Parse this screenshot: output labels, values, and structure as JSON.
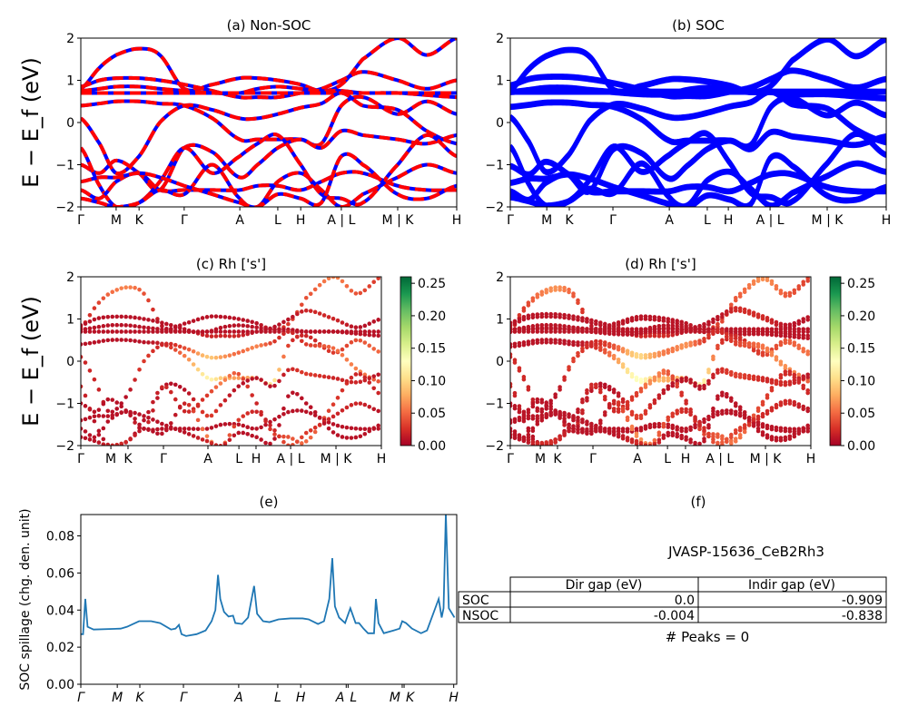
{
  "chart_data": [
    {
      "id": "a",
      "type": "line",
      "title": "(a) Non-SOC",
      "ylabel": "E − E_f (eV)",
      "ylim": [
        -2,
        2
      ],
      "yticks": [
        "−2",
        "−1",
        "0",
        "1",
        "2"
      ],
      "xticks": [
        {
          "k": 0,
          "label": "Γ"
        },
        {
          "k": 0.094,
          "label": "M"
        },
        {
          "k": 0.155,
          "label": "K"
        },
        {
          "k": 0.275,
          "label": "Γ"
        },
        {
          "k": 0.423,
          "label": "A"
        },
        {
          "k": 0.524,
          "label": "L"
        },
        {
          "k": 0.585,
          "label": "H"
        },
        {
          "k": 0.693,
          "label": "A | L"
        },
        {
          "k": 0.843,
          "label": "M | K"
        },
        {
          "k": 1,
          "label": "H"
        }
      ],
      "colors": [
        "#ff0000",
        "#0000ff"
      ]
    },
    {
      "id": "b",
      "type": "line",
      "title": "(b) SOC",
      "ylim": [
        -2,
        2
      ],
      "yticks": [
        "−2",
        "−1",
        "0",
        "1",
        "2"
      ],
      "xticks": [
        {
          "k": 0,
          "label": "Γ"
        },
        {
          "k": 0.097,
          "label": "M"
        },
        {
          "k": 0.157,
          "label": "K"
        },
        {
          "k": 0.273,
          "label": "Γ"
        },
        {
          "k": 0.423,
          "label": "A"
        },
        {
          "k": 0.524,
          "label": "L"
        },
        {
          "k": 0.58,
          "label": "H"
        },
        {
          "k": 0.691,
          "label": "A | L"
        },
        {
          "k": 0.843,
          "label": "M | K"
        },
        {
          "k": 1,
          "label": "H"
        }
      ],
      "colors": [
        "#0000ff"
      ]
    },
    {
      "id": "c",
      "type": "scatter",
      "title": "(c)  Rh ['s']",
      "ylabel": "E − E_f (eV)",
      "ylim": [
        -2,
        2
      ],
      "yticks": [
        "−2",
        "−1",
        "0",
        "1",
        "2"
      ],
      "xticks": [
        {
          "k": 0,
          "label": "Γ"
        },
        {
          "k": 0.1,
          "label": "M"
        },
        {
          "k": 0.157,
          "label": "K"
        },
        {
          "k": 0.275,
          "label": "Γ"
        },
        {
          "k": 0.423,
          "label": "A"
        },
        {
          "k": 0.526,
          "label": "L"
        },
        {
          "k": 0.583,
          "label": "H"
        },
        {
          "k": 0.698,
          "label": "A | L"
        },
        {
          "k": 0.849,
          "label": "M | K"
        },
        {
          "k": 1,
          "label": "H"
        }
      ],
      "colorbar": {
        "range": [
          0,
          0.26
        ],
        "ticks": [
          "0.00",
          "0.05",
          "0.10",
          "0.15",
          "0.20",
          "0.25"
        ],
        "colormap": "RdYlGn"
      }
    },
    {
      "id": "d",
      "type": "scatter",
      "title": "(d) Rh ['s']",
      "ylim": [
        -2,
        2
      ],
      "yticks": [
        "−2",
        "−1",
        "0",
        "1",
        "2"
      ],
      "xticks": [
        {
          "k": 0,
          "label": "Γ"
        },
        {
          "k": 0.1,
          "label": "M"
        },
        {
          "k": 0.157,
          "label": "K"
        },
        {
          "k": 0.275,
          "label": "Γ"
        },
        {
          "k": 0.423,
          "label": "A"
        },
        {
          "k": 0.523,
          "label": "L"
        },
        {
          "k": 0.583,
          "label": "H"
        },
        {
          "k": 0.697,
          "label": "A | L"
        },
        {
          "k": 0.849,
          "label": "M | K"
        },
        {
          "k": 1,
          "label": "H"
        }
      ],
      "colorbar": {
        "range": [
          0,
          0.26
        ],
        "ticks": [
          "0.00",
          "0.05",
          "0.10",
          "0.15",
          "0.20",
          "0.25"
        ],
        "colormap": "RdYlGn"
      }
    },
    {
      "id": "e",
      "type": "line",
      "title": "(e)",
      "ylabel": "SOC spillage (chg. den. unit)",
      "ylim": [
        0,
        0.0915
      ],
      "yticks": [
        "0.00",
        "0.02",
        "0.04",
        "0.06",
        "0.08"
      ],
      "xticks": [
        {
          "k": 0,
          "label": "Γ"
        },
        {
          "k": 0.097,
          "label": "M"
        },
        {
          "k": 0.157,
          "label": "K"
        },
        {
          "k": 0.273,
          "label": "Γ"
        },
        {
          "k": 0.42,
          "label": "A"
        },
        {
          "k": 0.524,
          "label": "L"
        },
        {
          "k": 0.585,
          "label": "H"
        },
        {
          "k": 0.706,
          "label": "A"
        },
        {
          "k": 0.711,
          "label": "L"
        },
        {
          "k": 0.855,
          "label": "M"
        },
        {
          "k": 0.86,
          "label": "K"
        },
        {
          "k": 0.992,
          "label": "H"
        }
      ],
      "color": "#1f77b4",
      "points": [
        [
          0,
          0.027
        ],
        [
          0.006,
          0.027
        ],
        [
          0.012,
          0.046
        ],
        [
          0.018,
          0.031
        ],
        [
          0.034,
          0.0295
        ],
        [
          0.106,
          0.03
        ],
        [
          0.123,
          0.031
        ],
        [
          0.155,
          0.034
        ],
        [
          0.187,
          0.034
        ],
        [
          0.211,
          0.033
        ],
        [
          0.24,
          0.0295
        ],
        [
          0.252,
          0.03
        ],
        [
          0.261,
          0.032
        ],
        [
          0.268,
          0.027
        ],
        [
          0.28,
          0.026
        ],
        [
          0.308,
          0.027
        ],
        [
          0.332,
          0.029
        ],
        [
          0.348,
          0.034
        ],
        [
          0.358,
          0.04
        ],
        [
          0.365,
          0.059
        ],
        [
          0.371,
          0.046
        ],
        [
          0.381,
          0.039
        ],
        [
          0.393,
          0.0365
        ],
        [
          0.405,
          0.037
        ],
        [
          0.411,
          0.033
        ],
        [
          0.429,
          0.0325
        ],
        [
          0.445,
          0.036
        ],
        [
          0.461,
          0.053
        ],
        [
          0.469,
          0.038
        ],
        [
          0.485,
          0.034
        ],
        [
          0.502,
          0.0335
        ],
        [
          0.526,
          0.035
        ],
        [
          0.558,
          0.0355
        ],
        [
          0.59,
          0.0355
        ],
        [
          0.606,
          0.035
        ],
        [
          0.631,
          0.0325
        ],
        [
          0.647,
          0.034
        ],
        [
          0.661,
          0.046
        ],
        [
          0.669,
          0.068
        ],
        [
          0.676,
          0.042
        ],
        [
          0.687,
          0.036
        ],
        [
          0.703,
          0.033
        ],
        [
          0.717,
          0.041
        ],
        [
          0.731,
          0.033
        ],
        [
          0.74,
          0.033
        ],
        [
          0.752,
          0.03
        ],
        [
          0.764,
          0.0275
        ],
        [
          0.78,
          0.0275
        ],
        [
          0.785,
          0.046
        ],
        [
          0.792,
          0.033
        ],
        [
          0.806,
          0.0275
        ],
        [
          0.832,
          0.029
        ],
        [
          0.848,
          0.03
        ],
        [
          0.855,
          0.034
        ],
        [
          0.865,
          0.033
        ],
        [
          0.881,
          0.03
        ],
        [
          0.905,
          0.0275
        ],
        [
          0.921,
          0.029
        ],
        [
          0.952,
          0.046
        ],
        [
          0.96,
          0.036
        ],
        [
          0.965,
          0.041
        ],
        [
          0.971,
          0.092
        ],
        [
          0.979,
          0.041
        ],
        [
          0.994,
          0.036
        ]
      ]
    }
  ],
  "bands": {
    "k": [
      0,
      0.05,
      0.094,
      0.155,
      0.21,
      0.275,
      0.35,
      0.423,
      0.47,
      0.524,
      0.585,
      0.64,
      0.693,
      0.75,
      0.843,
      0.92,
      1
    ],
    "energies": [
      [
        0.8,
        1.3,
        1.6,
        1.75,
        1.6,
        0.8,
        0.9,
        1.05,
        1.05,
        1.0,
        0.9,
        0.75,
        0.9,
        1.5,
        2.0,
        1.6,
        2.0
      ],
      [
        0.85,
        1.0,
        1.05,
        1.05,
        1.0,
        0.9,
        0.75,
        0.6,
        0.6,
        0.6,
        0.7,
        0.8,
        1.0,
        1.2,
        1.0,
        0.8,
        1.0
      ],
      [
        0.75,
        0.8,
        0.85,
        0.85,
        0.8,
        0.75,
        0.7,
        0.7,
        0.8,
        0.85,
        0.8,
        0.75,
        0.75,
        0.7,
        0.7,
        0.65,
        0.6
      ],
      [
        0.7,
        0.7,
        0.7,
        0.7,
        0.7,
        0.7,
        0.7,
        0.7,
        0.7,
        0.7,
        0.7,
        0.7,
        0.7,
        0.7,
        0.7,
        0.7,
        0.7
      ],
      [
        0.4,
        0.45,
        0.5,
        0.5,
        0.45,
        0.4,
        0.1,
        -0.4,
        -0.4,
        -0.4,
        -0.4,
        -0.5,
        0.4,
        0.6,
        0.2,
        0.5,
        0.2
      ],
      [
        0.1,
        -0.5,
        -1.2,
        -0.8,
        0.0,
        0.4,
        0.3,
        0.1,
        0.1,
        0.2,
        0.35,
        0.45,
        0.7,
        0.4,
        0.3,
        -0.2,
        -0.5
      ],
      [
        -1.0,
        -1.2,
        -0.9,
        -1.2,
        -1.6,
        -0.6,
        -0.7,
        -1.3,
        -1.0,
        -0.6,
        -0.4,
        -0.6,
        -0.2,
        -0.3,
        -0.4,
        -0.5,
        -0.3
      ],
      [
        -0.6,
        -1.5,
        -2.0,
        -1.9,
        -1.4,
        -0.6,
        -1.2,
        -0.8,
        -0.5,
        -0.3,
        -1.0,
        -1.7,
        -1.8,
        -1.9,
        -1.0,
        -0.3,
        -0.8
      ],
      [
        -1.6,
        -1.8,
        -1.4,
        -1.2,
        -1.6,
        -1.6,
        -1.6,
        -1.6,
        -1.5,
        -1.5,
        -1.6,
        -1.4,
        -1.2,
        -1.2,
        -1.5,
        -1.6,
        -1.6
      ],
      [
        -1.8,
        -1.9,
        -2.0,
        -1.9,
        -1.6,
        -1.7,
        -1.0,
        -1.8,
        -2.0,
        -1.4,
        -1.2,
        -1.6,
        -2.0,
        -1.7,
        -1.3,
        -1.0,
        -1.2
      ],
      [
        -1.4,
        -1.3,
        -1.3,
        -1.2,
        -1.3,
        -1.5,
        -1.7,
        -1.9,
        -2.0,
        -1.7,
        -1.8,
        -1.9,
        -0.8,
        -1.0,
        -1.7,
        -1.8,
        -1.5
      ]
    ],
    "rh_s_weight": [
      [
        0.02,
        0.03,
        0.05,
        0.06,
        0.04,
        0.01,
        0.01,
        0.01,
        0.01,
        0.01,
        0.01,
        0.02,
        0.03,
        0.04,
        0.06,
        0.04,
        0.03
      ],
      [
        0.01,
        0.01,
        0.01,
        0.01,
        0.01,
        0.01,
        0.01,
        0.02,
        0.02,
        0.02,
        0.01,
        0.01,
        0.01,
        0.02,
        0.02,
        0.01,
        0.01
      ],
      [
        0.01,
        0.01,
        0.01,
        0.01,
        0.01,
        0.01,
        0.01,
        0.01,
        0.01,
        0.01,
        0.01,
        0.01,
        0.01,
        0.01,
        0.01,
        0.01,
        0.01
      ],
      [
        0.01,
        0.01,
        0.01,
        0.01,
        0.01,
        0.01,
        0.01,
        0.01,
        0.01,
        0.01,
        0.01,
        0.01,
        0.01,
        0.01,
        0.01,
        0.01,
        0.01
      ],
      [
        0.01,
        0.01,
        0.01,
        0.01,
        0.01,
        0.02,
        0.06,
        0.12,
        0.09,
        0.07,
        0.08,
        0.11,
        0.03,
        0.02,
        0.03,
        0.04,
        0.05
      ],
      [
        0.02,
        0.02,
        0.01,
        0.01,
        0.03,
        0.02,
        0.04,
        0.09,
        0.07,
        0.05,
        0.06,
        0.03,
        0.02,
        0.03,
        0.05,
        0.06,
        0.04
      ],
      [
        0.01,
        0.01,
        0.01,
        0.01,
        0.02,
        0.01,
        0.01,
        0.03,
        0.02,
        0.01,
        0.01,
        0.01,
        0.02,
        0.03,
        0.02,
        0.02,
        0.01
      ],
      [
        0.02,
        0.01,
        0.01,
        0.01,
        0.01,
        0.02,
        0.02,
        0.03,
        0.06,
        0.04,
        0.02,
        0.03,
        0.04,
        0.05,
        0.03,
        0.02,
        0.02
      ],
      [
        0.01,
        0.01,
        0.01,
        0.01,
        0.01,
        0.01,
        0.01,
        0.01,
        0.01,
        0.01,
        0.01,
        0.01,
        0.01,
        0.01,
        0.01,
        0.01,
        0.01
      ],
      [
        0.01,
        0.01,
        0.02,
        0.02,
        0.01,
        0.01,
        0.02,
        0.06,
        0.05,
        0.03,
        0.02,
        0.02,
        0.04,
        0.03,
        0.02,
        0.02,
        0.01
      ],
      [
        0.01,
        0.01,
        0.01,
        0.01,
        0.01,
        0.01,
        0.01,
        0.02,
        0.02,
        0.01,
        0.01,
        0.01,
        0.01,
        0.01,
        0.01,
        0.01,
        0.01
      ]
    ]
  },
  "info_panel": {
    "title": "(f)",
    "material": "JVASP-15636_CeB2Rh3",
    "table": {
      "headers": [
        "",
        "Dir gap (eV)",
        "Indir gap (eV)"
      ],
      "rows": [
        [
          "SOC",
          "0.0",
          "-0.909"
        ],
        [
          "NSOC",
          "-0.004",
          "-0.838"
        ]
      ]
    },
    "peaks": "# Peaks = 0"
  }
}
